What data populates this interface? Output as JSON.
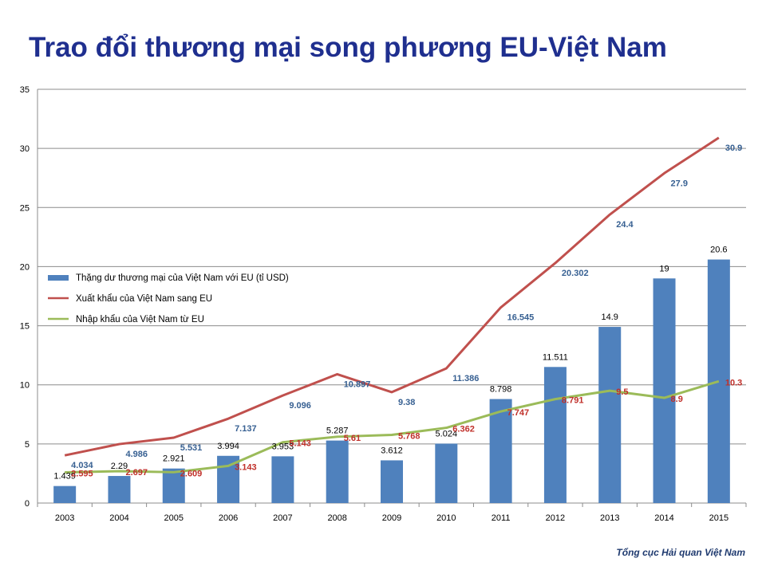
{
  "title": "Trao đổi thương mại song phương EU-Việt Nam",
  "source": "Tổng cục Hải quan Việt Nam",
  "chart_data": {
    "type": "bar+line",
    "categories": [
      "2003",
      "2004",
      "2005",
      "2006",
      "2007",
      "2008",
      "2009",
      "2010",
      "2011",
      "2012",
      "2013",
      "2014",
      "2015"
    ],
    "ylim": [
      0,
      35
    ],
    "yticks": [
      0,
      5,
      10,
      15,
      20,
      25,
      30,
      35
    ],
    "grid": true,
    "legend": "left-middle",
    "series": [
      {
        "name": "Thặng dư thương mại của Việt Nam với EU (tỉ USD)",
        "kind": "bar",
        "color": "#4f81bd",
        "label_color": "#000000",
        "values": [
          1.439,
          2.29,
          2.921,
          3.994,
          3.953,
          5.287,
          3.612,
          5.024,
          8.798,
          11.511,
          14.9,
          19,
          20.6
        ],
        "labels": [
          "1.439",
          "2.29",
          "2.921",
          "3.994",
          "3.953",
          "5.287",
          "3.612",
          "5.024",
          "8.798",
          "11.511",
          "14.9",
          "19",
          "20.6"
        ]
      },
      {
        "name": "Xuất khẩu của Việt Nam sang EU",
        "kind": "line",
        "color": "#c0504d",
        "label_color": "#376092",
        "values": [
          4.034,
          4.986,
          5.531,
          7.137,
          9.096,
          10.897,
          9.38,
          11.386,
          16.545,
          20.302,
          24.4,
          27.9,
          30.9
        ],
        "labels": [
          "4.034",
          "4.986",
          "5.531",
          "7.137",
          "9.096",
          "10.897",
          "9.38",
          "11.386",
          "16.545",
          "20.302",
          "24.4",
          "27.9",
          "30.9"
        ]
      },
      {
        "name": "Nhập khẩu của Việt Nam từ EU",
        "kind": "line",
        "color": "#9bbb59",
        "label_color": "#c0302a",
        "values": [
          2.595,
          2.697,
          2.609,
          3.143,
          5.143,
          5.61,
          5.768,
          6.362,
          7.747,
          8.791,
          9.5,
          8.9,
          10.3
        ],
        "labels": [
          "2.595",
          "2.697",
          "2.609",
          "3.143",
          "5.143",
          "5.61",
          "5.768",
          "6.362",
          "7.747",
          "8.791",
          "9.5",
          "8.9",
          "10.3"
        ]
      }
    ]
  }
}
